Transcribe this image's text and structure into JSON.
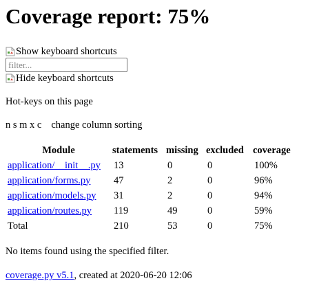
{
  "header": {
    "title": "Coverage report: 75%"
  },
  "shortcuts": {
    "show_alt": "Show keyboard shortcuts",
    "hide_alt": "Hide keyboard shortcuts"
  },
  "filter": {
    "placeholder": "filter...",
    "value": ""
  },
  "help": {
    "heading": "Hot-keys on this page",
    "keys": "n s m x c",
    "description": "change column sorting"
  },
  "table": {
    "columns": [
      "Module",
      "statements",
      "missing",
      "excluded",
      "coverage"
    ],
    "rows": [
      {
        "module": "application/__init__.py",
        "statements": "13",
        "missing": "0",
        "excluded": "0",
        "coverage": "100%"
      },
      {
        "module": "application/forms.py",
        "statements": "47",
        "missing": "2",
        "excluded": "0",
        "coverage": "96%"
      },
      {
        "module": "application/models.py",
        "statements": "31",
        "missing": "2",
        "excluded": "0",
        "coverage": "94%"
      },
      {
        "module": "application/routes.py",
        "statements": "119",
        "missing": "49",
        "excluded": "0",
        "coverage": "59%"
      }
    ],
    "total": {
      "module": "Total",
      "statements": "210",
      "missing": "53",
      "excluded": "0",
      "coverage": "75%"
    }
  },
  "messages": {
    "no_match": "No items found using the specified filter."
  },
  "footer": {
    "link_text": "coverage.py v5.1",
    "created_text": ", created at 2020-06-20 12:06"
  },
  "colors": {
    "link": "#0000ee",
    "text": "#000000",
    "background": "#ffffff"
  }
}
